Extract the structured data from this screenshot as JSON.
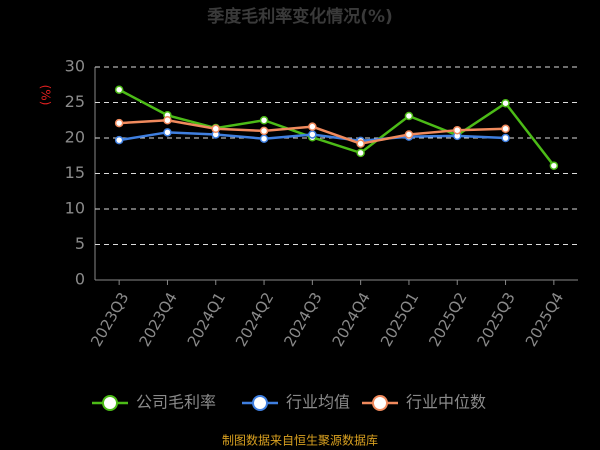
{
  "chart_data": {
    "type": "line",
    "title": "季度毛利率变化情况(%)",
    "y_label": "(%)",
    "categories": [
      "2023Q3",
      "2023Q4",
      "2024Q1",
      "2024Q2",
      "2024Q3",
      "2024Q4",
      "2025Q1",
      "2025Q2",
      "2025Q3",
      "2025Q4"
    ],
    "series": [
      {
        "name": "公司毛利率",
        "color": "#4cbb17",
        "values": [
          26.8,
          23.2,
          21.4,
          22.5,
          20.1,
          17.9,
          23.1,
          20.4,
          24.9,
          16.1
        ]
      },
      {
        "name": "行业均值",
        "color": "#3f7fe0",
        "values": [
          19.7,
          20.8,
          20.5,
          19.9,
          20.5,
          19.6,
          20.2,
          20.3,
          20.0,
          null
        ]
      },
      {
        "name": "行业中位数",
        "color": "#f08a5d",
        "values": [
          22.1,
          22.5,
          21.3,
          21.0,
          21.6,
          19.2,
          20.5,
          21.1,
          21.3,
          null
        ]
      }
    ],
    "ylim": [
      0,
      30
    ],
    "yticks": [
      0,
      5,
      10,
      15,
      20,
      25,
      30
    ],
    "grid": true,
    "source": "制图数据来自恒生聚源数据库"
  }
}
